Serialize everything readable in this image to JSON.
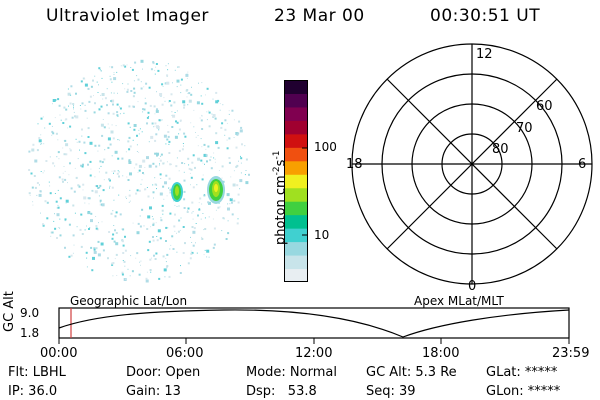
{
  "header": {
    "title": "Ultraviolet Imager",
    "date": "23 Mar 00",
    "time": "00:30:51 UT"
  },
  "colorbar": {
    "unit_label": "photon cm",
    "unit_exp1": "-2",
    "unit_s": "s",
    "unit_exp2": "-1",
    "tick_100": "100",
    "tick_10": "10",
    "colors": [
      "#e8eef2",
      "#c8e4ea",
      "#98d8e0",
      "#40d0d0",
      "#00c090",
      "#40d040",
      "#a0e020",
      "#f0f020",
      "#f8a000",
      "#f05010",
      "#d01010",
      "#a00030",
      "#800050",
      "#500050",
      "#200030"
    ]
  },
  "polar": {
    "labels": {
      "top": "12",
      "bottom": "0",
      "left": "18",
      "right": "6"
    },
    "lat_labels": [
      "60",
      "70",
      "80"
    ]
  },
  "timeline": {
    "y_axis_label": "GC Alt",
    "y_top": "9.0",
    "y_bottom": "1.8",
    "left_caption": "Geographic Lat/Lon",
    "right_caption": "Apex MLat/MLT",
    "ticks": [
      "00:00",
      "06:00",
      "12:00",
      "18:00",
      "23:59"
    ]
  },
  "status": {
    "row1": {
      "flt": "Flt: LBHL",
      "door": "Door: Open",
      "mode": "Mode: Normal",
      "gcalt": "GC Alt: 5.3 Re",
      "glat": "GLat: *****"
    },
    "row2": {
      "ip": "IP: 36.0",
      "gain": "Gain: 13",
      "dsp": "Dsp:   53.8",
      "seq": "Seq: 39",
      "glon": "GLon: *****"
    }
  }
}
